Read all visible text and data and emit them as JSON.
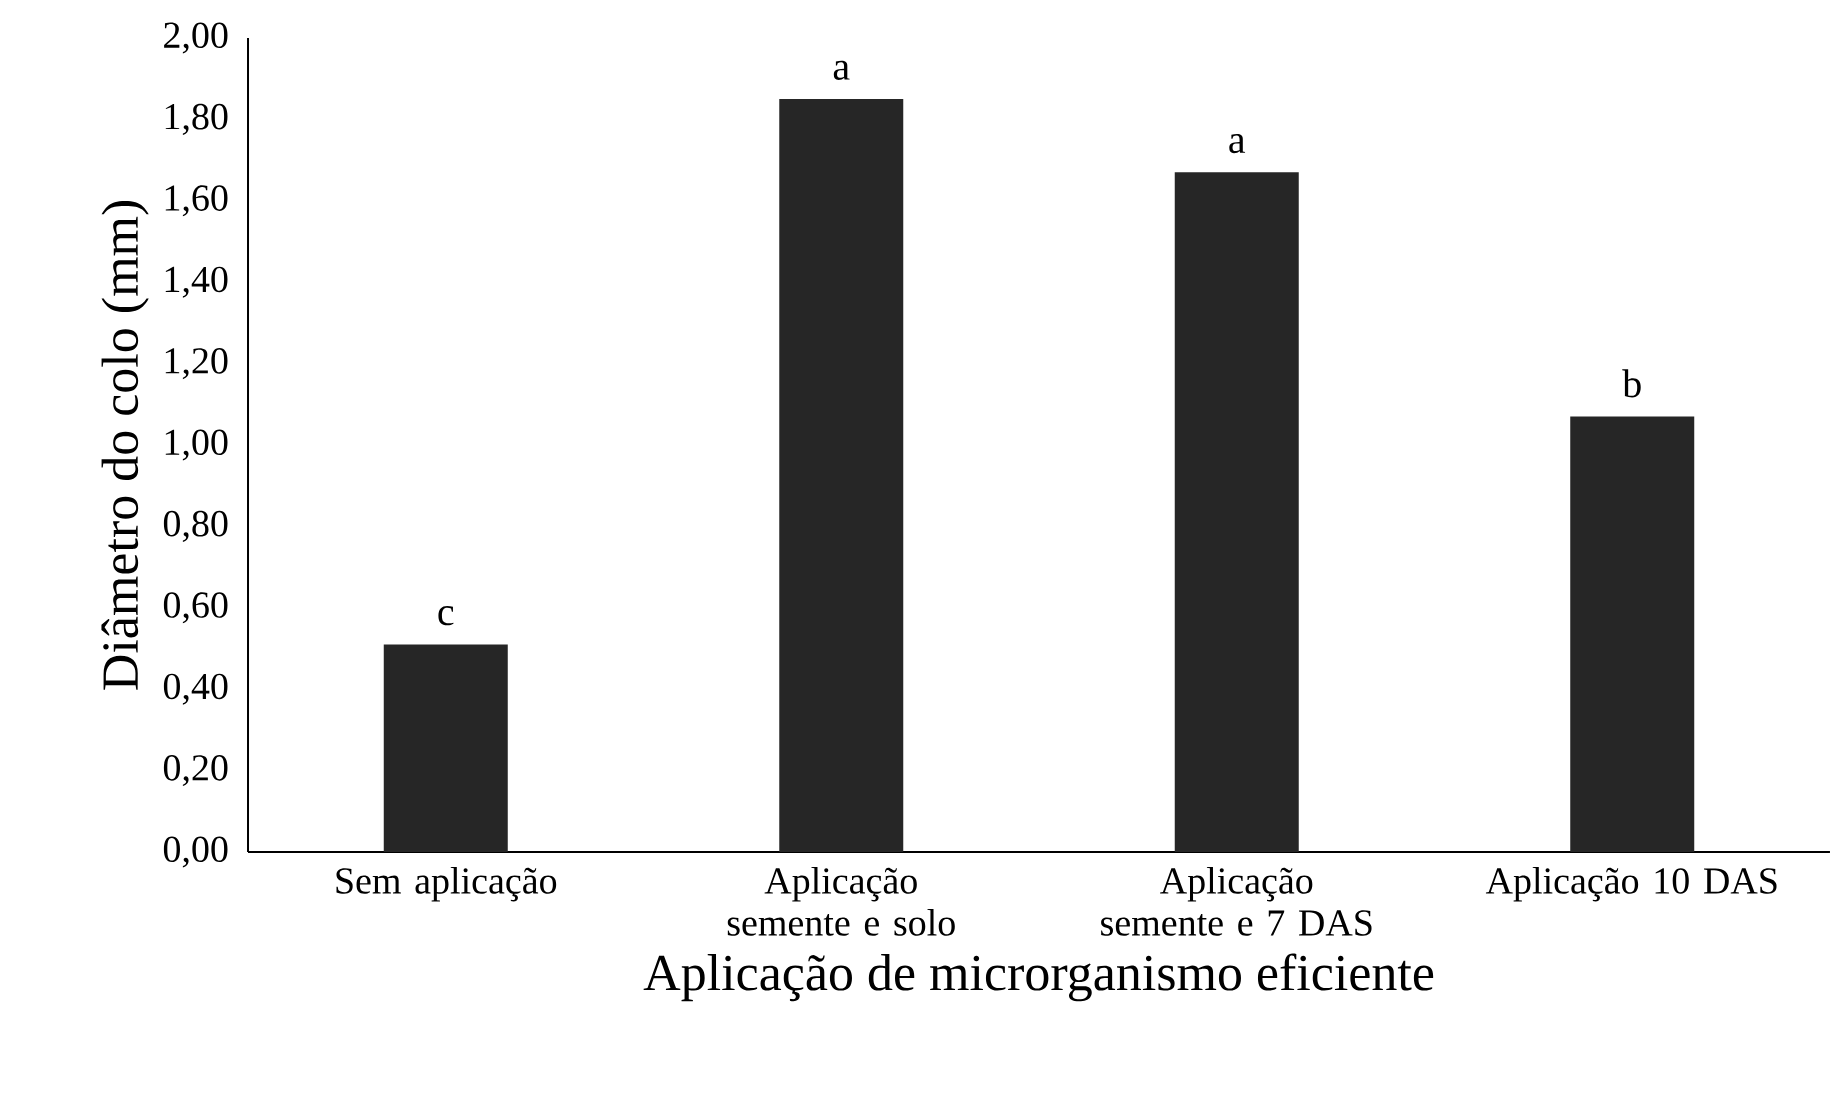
{
  "chart_data": {
    "type": "bar",
    "xlabel": "Aplicação de microrganismo eficiente",
    "ylabel": "Diâmetro do colo (mm)",
    "categories": [
      "Sem aplicação",
      "Aplicação semente e solo",
      "Aplicação semente e 7 DAS",
      "Aplicação 10 DAS"
    ],
    "values": [
      0.51,
      1.85,
      1.67,
      1.07
    ],
    "color": "#262626",
    "ylim": [
      0,
      2
    ],
    "yticks": [
      {
        "value": 0,
        "label": "0,00"
      },
      {
        "value": 0.2,
        "label": "0,20"
      },
      {
        "value": 0.4,
        "label": "0,40"
      },
      {
        "value": 0.6,
        "label": "0,60"
      },
      {
        "value": 0.8,
        "label": "0,80"
      },
      {
        "value": 1.0,
        "label": "1,00"
      },
      {
        "value": 1.2,
        "label": "1,20"
      },
      {
        "value": 1.4,
        "label": "1,40"
      },
      {
        "value": 1.6,
        "label": "1,60"
      },
      {
        "value": 1.8,
        "label": "1,80"
      },
      {
        "value": 2.0,
        "label": "2,00"
      }
    ],
    "annotations": [
      {
        "text": "c",
        "x": "Sem aplicação",
        "y": 0.51
      },
      {
        "text": "a",
        "x": "Aplicação semente e solo",
        "y": 1.85
      },
      {
        "text": "a",
        "x": "Aplicação semente e 7 DAS",
        "y": 1.67
      },
      {
        "text": "b",
        "x": "Aplicação 10 DAS",
        "y": 1.07
      }
    ],
    "grid": false
  }
}
